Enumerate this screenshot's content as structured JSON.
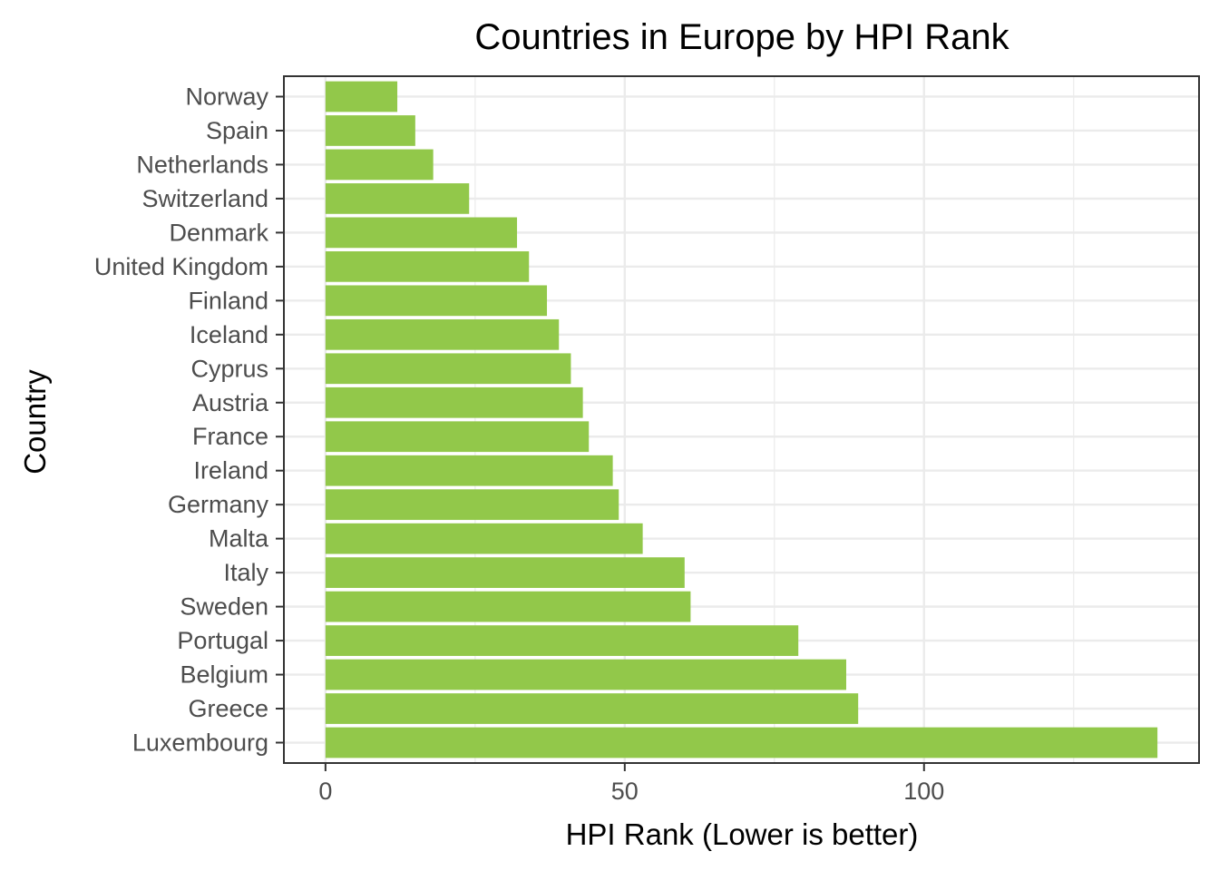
{
  "chart_data": {
    "type": "bar",
    "orientation": "horizontal",
    "title": "Countries in Europe by HPI Rank",
    "xlabel": "HPI Rank (Lower is better)",
    "ylabel": "Country",
    "categories": [
      "Norway",
      "Spain",
      "Netherlands",
      "Switzerland",
      "Denmark",
      "United Kingdom",
      "Finland",
      "Iceland",
      "Cyprus",
      "Austria",
      "France",
      "Ireland",
      "Germany",
      "Malta",
      "Italy",
      "Sweden",
      "Portugal",
      "Belgium",
      "Greece",
      "Luxembourg"
    ],
    "values": [
      12,
      15,
      18,
      24,
      32,
      34,
      37,
      39,
      41,
      43,
      44,
      48,
      49,
      53,
      60,
      61,
      79,
      87,
      89,
      139
    ],
    "xlim": [
      -6.95,
      145.95
    ],
    "xticks": [
      0,
      50,
      100
    ],
    "xtick_labels": [
      "0",
      "50",
      "100"
    ],
    "grid": true,
    "bar_color": "#92C84A",
    "legend": "none"
  }
}
